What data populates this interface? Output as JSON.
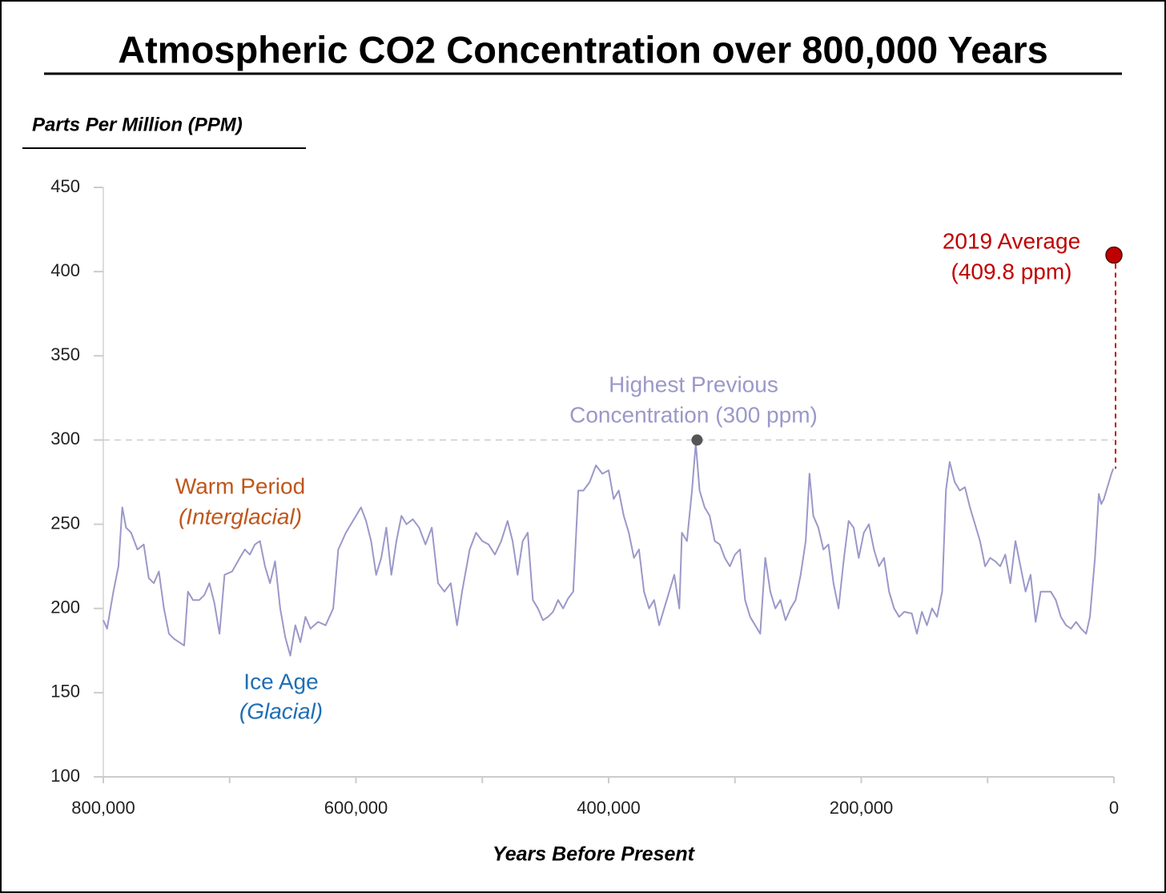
{
  "chart_data": {
    "type": "line",
    "title": "Atmospheric CO2 Concentration over 800,000 Years",
    "y_label": "Parts Per Million (PPM)",
    "x_label": "Years Before Present",
    "xlim": [
      800000,
      0
    ],
    "xticks": [
      {
        "value": 800000,
        "label": "800,000"
      },
      {
        "value": 600000,
        "label": "600,000"
      },
      {
        "value": 400000,
        "label": "400,000"
      },
      {
        "value": 200000,
        "label": "200,000"
      },
      0
    ],
    "xminorticks": [
      700000,
      500000,
      300000,
      100000
    ],
    "ylim": [
      100,
      450
    ],
    "yticks": [
      100,
      150,
      200,
      250,
      300,
      350,
      400,
      450
    ],
    "reference_line": 300,
    "x": [
      800000,
      797000,
      792000,
      788000,
      785000,
      782000,
      778000,
      773000,
      768000,
      764000,
      760000,
      756000,
      752000,
      748000,
      744000,
      740000,
      736000,
      733000,
      729000,
      724000,
      720000,
      716000,
      712000,
      708000,
      704000,
      698000,
      692000,
      688000,
      684000,
      680000,
      676000,
      672000,
      668000,
      664000,
      660000,
      656000,
      652000,
      648000,
      644000,
      640000,
      636000,
      630000,
      624000,
      618000,
      614000,
      608000,
      600000,
      596000,
      592000,
      588000,
      584000,
      580000,
      576000,
      572000,
      568000,
      564000,
      560000,
      555000,
      550000,
      545000,
      540000,
      535000,
      530000,
      525000,
      520000,
      516000,
      510000,
      505000,
      500000,
      495000,
      490000,
      485000,
      480000,
      476000,
      472000,
      468000,
      464000,
      460000,
      456000,
      452000,
      448000,
      444000,
      440000,
      436000,
      432000,
      428000,
      424000,
      420000,
      415000,
      410000,
      405000,
      400000,
      396000,
      392000,
      388000,
      384000,
      380000,
      376000,
      372000,
      368000,
      364000,
      360000,
      356000,
      352000,
      348000,
      344000,
      342000,
      338000,
      334000,
      331000,
      328000,
      324000,
      320000,
      316000,
      312000,
      308000,
      304000,
      300000,
      296000,
      292000,
      288000,
      284000,
      280000,
      276000,
      272000,
      268000,
      264000,
      260000,
      256000,
      252000,
      248000,
      244000,
      241000,
      238000,
      234000,
      230000,
      226000,
      222000,
      218000,
      214000,
      210000,
      206000,
      202000,
      198000,
      194000,
      190000,
      186000,
      182000,
      178000,
      174000,
      170000,
      166000,
      160000,
      156000,
      152000,
      148000,
      144000,
      140000,
      136000,
      133000,
      130000,
      126000,
      122000,
      118000,
      114000,
      110000,
      106000,
      102000,
      98000,
      94000,
      90000,
      86000,
      82000,
      78000,
      74000,
      70000,
      66000,
      62000,
      58000,
      54000,
      50000,
      46000,
      42000,
      38000,
      34000,
      30000,
      26000,
      22000,
      19000,
      15000,
      12000,
      10000,
      8000,
      6000,
      4000,
      2000,
      500
    ],
    "series": [
      {
        "color": "#9b98c9",
        "values": [
          193,
          188,
          210,
          225,
          260,
          248,
          245,
          235,
          238,
          218,
          215,
          222,
          200,
          185,
          182,
          180,
          178,
          210,
          205,
          205,
          208,
          215,
          203,
          185,
          220,
          222,
          230,
          235,
          232,
          238,
          240,
          225,
          215,
          228,
          200,
          183,
          172,
          190,
          180,
          195,
          188,
          192,
          190,
          200,
          235,
          245,
          255,
          260,
          252,
          240,
          220,
          230,
          248,
          220,
          240,
          255,
          250,
          253,
          248,
          238,
          248,
          215,
          210,
          215,
          190,
          210,
          235,
          245,
          240,
          238,
          232,
          240,
          252,
          240,
          220,
          240,
          245,
          205,
          200,
          193,
          195,
          198,
          205,
          200,
          206,
          210,
          270,
          270,
          275,
          285,
          280,
          282,
          265,
          270,
          255,
          245,
          230,
          235,
          210,
          200,
          205,
          190,
          200,
          210,
          220,
          200,
          245,
          240,
          270,
          298,
          270,
          260,
          255,
          240,
          238,
          230,
          225,
          232,
          235,
          205,
          195,
          190,
          185,
          230,
          210,
          200,
          205,
          193,
          200,
          205,
          220,
          240,
          280,
          255,
          248,
          235,
          238,
          215,
          200,
          228,
          252,
          248,
          230,
          245,
          250,
          235,
          225,
          230,
          210,
          200,
          195,
          198,
          197,
          185,
          198,
          190,
          200,
          195,
          210,
          270,
          287,
          275,
          270,
          272,
          260,
          250,
          240,
          225,
          230,
          228,
          225,
          232,
          215,
          240,
          225,
          210,
          220,
          192,
          210,
          210,
          210,
          205,
          195,
          190,
          188,
          192,
          188,
          185,
          195,
          230,
          268,
          262,
          265,
          270,
          275,
          280,
          283
        ]
      }
    ],
    "highlights": [
      {
        "x": 330000,
        "y": 300,
        "color": "#555555",
        "labels": [
          "Highest Previous",
          "Concentration (300 ppm)"
        ],
        "label_color": "#9b98c9"
      },
      {
        "x": 0,
        "y": 409.8,
        "color": "#c00000",
        "labels": [
          "2019 Average",
          "(409.8 ppm)"
        ],
        "label_color": "#c00000"
      }
    ],
    "annotations": [
      {
        "text": "Warm Period",
        "color": "#c0561a",
        "italic": false
      },
      {
        "text": "(Interglacial)",
        "color": "#c0561a",
        "italic": true
      },
      {
        "text": "Ice Age",
        "color": "#1f6fb4",
        "italic": false
      },
      {
        "text": "(Glacial)",
        "color": "#1f6fb4",
        "italic": true
      }
    ]
  }
}
